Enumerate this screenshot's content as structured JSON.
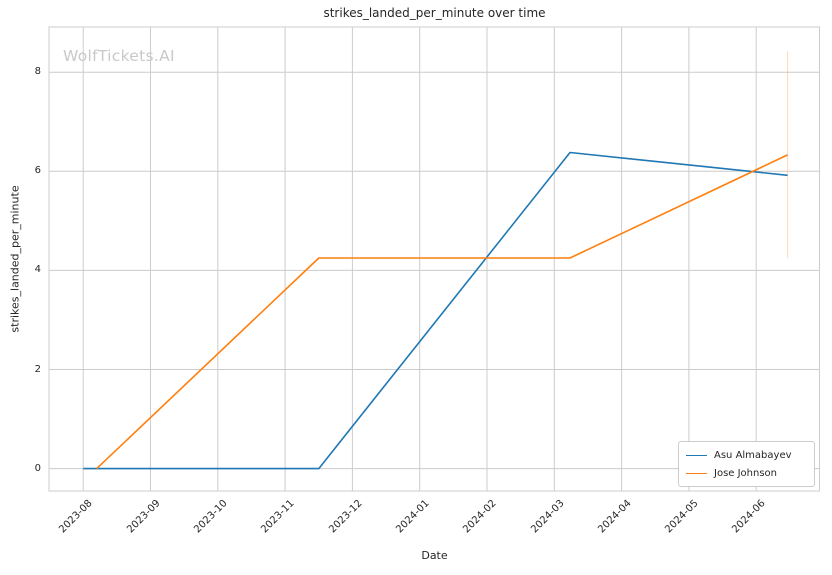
{
  "chart": {
    "title": "strikes_landed_per_minute over time",
    "watermark": "WolfTickets.AI",
    "xlabel": "Date",
    "ylabel": "strikes_landed_per_minute"
  },
  "chart_data": {
    "type": "line",
    "title": "strikes_landed_per_minute over time",
    "xlabel": "Date",
    "ylabel": "strikes_landed_per_minute",
    "x_tick_labels": [
      "2023-08",
      "2023-09",
      "2023-10",
      "2023-11",
      "2023-12",
      "2024-01",
      "2024-02",
      "2024-03",
      "2024-04",
      "2024-05",
      "2024-06"
    ],
    "y_ticks": [
      0,
      2,
      4,
      6,
      8
    ],
    "ylim": [
      -0.45,
      8.9
    ],
    "grid": true,
    "legend_position": "lower right",
    "series": [
      {
        "name": "Asu Almabayev",
        "color": "#1f77b4",
        "points": [
          [
            "2023-08-01",
            0
          ],
          [
            "2023-11-16",
            0
          ],
          [
            "2024-03-08",
            6.38
          ],
          [
            "2024-06-15",
            5.92
          ]
        ]
      },
      {
        "name": "Jose Johnson",
        "color": "#ff7f0e",
        "points": [
          [
            "2023-08-07",
            0
          ],
          [
            "2023-11-16",
            4.25
          ],
          [
            "2024-03-08",
            4.25
          ],
          [
            "2024-06-15",
            6.33
          ]
        ],
        "error_bar": {
          "x": "2024-06-15",
          "ymin": 4.25,
          "ymax": 8.42
        }
      }
    ]
  }
}
